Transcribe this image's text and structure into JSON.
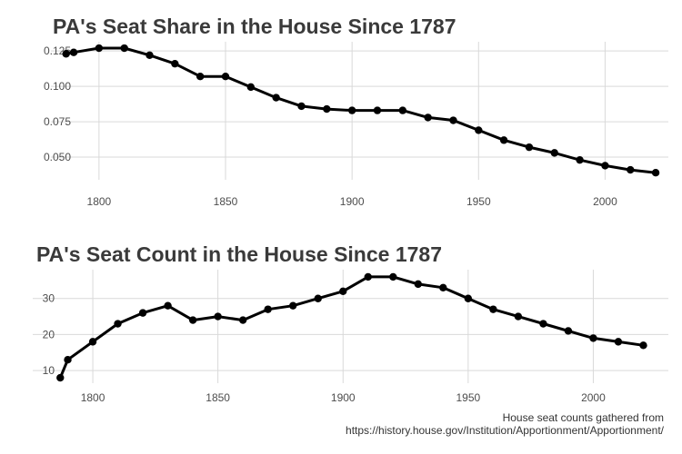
{
  "caption": {
    "line1": "House seat counts gathered from",
    "line2": "https://history.house.gov/Institution/Apportionment/Apportionment/"
  },
  "chart_data": [
    {
      "type": "line",
      "title": "PA's Seat Share in the House Since 1787",
      "xlabel": "",
      "ylabel": "",
      "xlim": [
        1781,
        2025
      ],
      "ylim": [
        0.034,
        0.1315
      ],
      "x_ticks": [
        1800,
        1850,
        1900,
        1950,
        2000
      ],
      "y_ticks": [
        0.05,
        0.075,
        0.1,
        0.125
      ],
      "y_tick_labels": [
        "0.050",
        "0.075",
        "0.100",
        "0.125"
      ],
      "grid": true,
      "legend": "none",
      "color": "#000000",
      "x": [
        1787,
        1790,
        1800,
        1810,
        1820,
        1830,
        1840,
        1850,
        1860,
        1870,
        1880,
        1890,
        1900,
        1910,
        1920,
        1930,
        1940,
        1950,
        1960,
        1970,
        1980,
        1990,
        2000,
        2010,
        2020
      ],
      "values": [
        0.123,
        0.124,
        0.127,
        0.127,
        0.122,
        0.116,
        0.107,
        0.107,
        0.0995,
        0.092,
        0.086,
        0.084,
        0.083,
        0.083,
        0.083,
        0.078,
        0.076,
        0.069,
        0.062,
        0.057,
        0.053,
        0.048,
        0.044,
        0.041,
        0.039
      ]
    },
    {
      "type": "line",
      "title": "PA's Seat Count in the House Since 1787",
      "xlabel": "",
      "ylabel": "",
      "xlim": [
        1776,
        2030
      ],
      "ylim": [
        6.5,
        38
      ],
      "x_ticks": [
        1800,
        1850,
        1900,
        1950,
        2000
      ],
      "y_ticks": [
        10,
        20,
        30
      ],
      "y_tick_labels": [
        "10",
        "20",
        "30"
      ],
      "grid": true,
      "legend": "none",
      "color": "#000000",
      "x": [
        1787,
        1790,
        1800,
        1810,
        1820,
        1830,
        1840,
        1850,
        1860,
        1870,
        1880,
        1890,
        1900,
        1910,
        1920,
        1930,
        1940,
        1950,
        1960,
        1970,
        1980,
        1990,
        2000,
        2010,
        2020
      ],
      "values": [
        8,
        13,
        18,
        23,
        26,
        28,
        24,
        25,
        24,
        27,
        28,
        30,
        32,
        36,
        36,
        34,
        33,
        30,
        27,
        25,
        23,
        21,
        19,
        18,
        17
      ]
    }
  ]
}
